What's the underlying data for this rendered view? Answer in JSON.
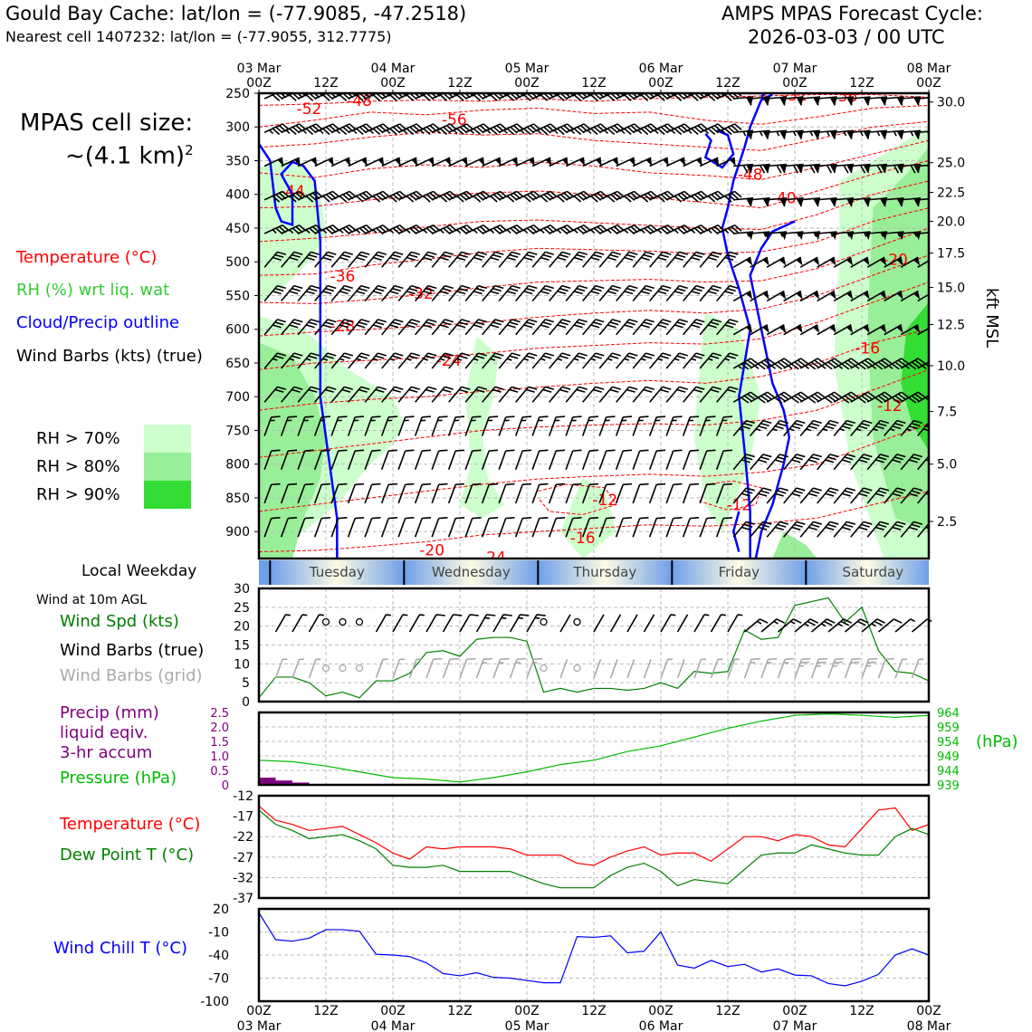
{
  "header": {
    "title": "Gould Bay Cache: lat/lon = (-77.9085, -47.2518)",
    "subtitle": "Nearest cell 1407232: lat/lon = (-77.9055, 312.7775)",
    "cycle_line1": "AMPS MPAS Forecast Cycle:",
    "cycle_line2": "2026-03-03 / 00 UTC"
  },
  "sidebar": {
    "cell_label": "MPAS cell size:",
    "cell_value": "~(4.1 km)",
    "cell_exp": "2",
    "legend_temp": "Temperature (°C)",
    "legend_rh": "RH (%) wrt liq. wat",
    "legend_cloud": "Cloud/Precip outline",
    "legend_wind": "Wind Barbs (kts) (true)",
    "rh70": "RH > 70%",
    "rh80": "RH > 80%",
    "rh90": "RH > 90%",
    "weekday_label": "Local Weekday",
    "wind10m_label": "Wind at 10m AGL",
    "wind_spd": "Wind Spd (kts)",
    "wind_true": "Wind Barbs (true)",
    "wind_grid": "Wind Barbs (grid)",
    "precip1": "Precip (mm)",
    "precip2": "liquid eqiv.",
    "precip3": "3-hr accum",
    "pressure": "Pressure (hPa)",
    "pressure_unit": "(hPa)",
    "temp": "Temperature (°C)",
    "dewpt": "Dew Point T (°C)",
    "windchill": "Wind Chill T (°C)",
    "kft": "kft MSL"
  },
  "colors": {
    "temp": "#ff0000",
    "dewpt": "#008000",
    "rh_label": "#33cc33",
    "cloud": "#0000ff",
    "windspd": "#008000",
    "grid_barb": "#aaaaaa",
    "precip": "#800080",
    "pressure": "#00bb00",
    "windchill": "#0000ff",
    "rh70": "#ccffcc",
    "rh80": "#99ee99",
    "rh90": "#33dd33"
  },
  "chart_data": [
    {
      "type": "time-height",
      "title": "Temperature, RH, cloud outline and wind barbs",
      "x_top_labels": [
        {
          "top": "03 Mar",
          "bottom": "00Z"
        },
        {
          "top": "",
          "bottom": "12Z"
        },
        {
          "top": "04 Mar",
          "bottom": "00Z"
        },
        {
          "top": "",
          "bottom": "12Z"
        },
        {
          "top": "05 Mar",
          "bottom": "00Z"
        },
        {
          "top": "",
          "bottom": "12Z"
        },
        {
          "top": "06 Mar",
          "bottom": "00Z"
        },
        {
          "top": "",
          "bottom": "12Z"
        },
        {
          "top": "07 Mar",
          "bottom": "00Z"
        },
        {
          "top": "",
          "bottom": "12Z"
        },
        {
          "top": "08 Mar",
          "bottom": "00Z"
        }
      ],
      "x_range_hours": [
        0,
        120
      ],
      "pressure_ticks": [
        "250",
        "300",
        "350",
        "400",
        "450",
        "500",
        "550",
        "600",
        "650",
        "700",
        "750",
        "800",
        "850",
        "900"
      ],
      "pressure_range": [
        250,
        940
      ],
      "height_ticks_kft": [
        "30.0",
        "25.0",
        "22.5",
        "20.0",
        "17.5",
        "15.0",
        "12.5",
        "10.0",
        "7.5",
        "5.0",
        "2.5"
      ],
      "height_tick_pressure": [
        263,
        353,
        397,
        440,
        487,
        538,
        593,
        654,
        722,
        800,
        885
      ],
      "temp_contour_labels": [
        {
          "text": "-52",
          "h": 9,
          "p": 273
        },
        {
          "text": "-48",
          "h": 18,
          "p": 261
        },
        {
          "text": "-56",
          "h": 35,
          "p": 289
        },
        {
          "text": "-52",
          "h": 96,
          "p": 253
        },
        {
          "text": "-56",
          "h": 105,
          "p": 254
        },
        {
          "text": "-44",
          "h": 6,
          "p": 395
        },
        {
          "text": "-48",
          "h": 88,
          "p": 370
        },
        {
          "text": "-40",
          "h": 94,
          "p": 405
        },
        {
          "text": "-36",
          "h": 15,
          "p": 521
        },
        {
          "text": "-32",
          "h": 29,
          "p": 547
        },
        {
          "text": "-20",
          "h": 114,
          "p": 496
        },
        {
          "text": "-28",
          "h": 15,
          "p": 595
        },
        {
          "text": "-24",
          "h": 34,
          "p": 646
        },
        {
          "text": "-16",
          "h": 109,
          "p": 628
        },
        {
          "text": "-12",
          "h": 113,
          "p": 713
        },
        {
          "text": "-12",
          "h": 62,
          "p": 853
        },
        {
          "text": "-12",
          "h": 86,
          "p": 860
        },
        {
          "text": "-16",
          "h": 58,
          "p": 909
        },
        {
          "text": "-20",
          "h": 31,
          "p": 927
        },
        {
          "text": "-24",
          "h": 42,
          "p": 938
        }
      ],
      "wind_barb_kts_by_level": {
        "250": 40,
        "300": 45,
        "350": 50,
        "400": 40,
        "450": 35,
        "500": 30,
        "550": 30,
        "600": 30,
        "650": 25,
        "700": 20,
        "750": 15,
        "800": 10,
        "850": 10,
        "900": 10
      }
    },
    {
      "type": "band",
      "title": "Local Weekday",
      "labels": [
        "Tuesday",
        "Wednesday",
        "Thursday",
        "Friday",
        "Saturday"
      ]
    },
    {
      "type": "line",
      "title": "Wind at 10m AGL",
      "ylabel": "Wind Spd (kts)",
      "ylim": [
        0,
        30
      ],
      "yticks": [
        "0",
        "5",
        "10",
        "15",
        "20",
        "25",
        "30"
      ],
      "x_hours": [
        0,
        3,
        6,
        9,
        12,
        15,
        18,
        21,
        24,
        27,
        30,
        33,
        36,
        39,
        42,
        45,
        48,
        51,
        54,
        57,
        60,
        63,
        66,
        69,
        72,
        75,
        78,
        81,
        84,
        87,
        90,
        93,
        96,
        99,
        102,
        105,
        108,
        111,
        114,
        117,
        120
      ],
      "wind_speed_kts": [
        1,
        6.5,
        6.5,
        5,
        1.5,
        2.5,
        1,
        5.5,
        5.5,
        7.5,
        13,
        13.5,
        12,
        16.5,
        17,
        17,
        16,
        2.5,
        3.5,
        2.5,
        3.5,
        3.5,
        3,
        3.5,
        5,
        3.5,
        8,
        7.5,
        8,
        19,
        16.5,
        17,
        25.5,
        26.5,
        27.5,
        21,
        25,
        13.5,
        8,
        7.5,
        5.5
      ]
    },
    {
      "type": "bar+line",
      "title": "Precip and Pressure",
      "precip_label": "Precip (mm)",
      "precip_ylim": [
        0,
        2.5
      ],
      "precip_ticks": [
        "0",
        "0.5",
        "1.0",
        "1.5",
        "2.0",
        "2.5"
      ],
      "precip_x_hours": [
        0,
        3,
        6
      ],
      "precip_mm": [
        0.25,
        0.15,
        0.08
      ],
      "pressure_ylim": [
        939,
        964
      ],
      "pressure_ticks": [
        "939",
        "944",
        "949",
        "954",
        "959",
        "964"
      ],
      "pressure_x_hours": [
        0,
        6,
        12,
        18,
        24,
        30,
        36,
        42,
        48,
        54,
        60,
        66,
        72,
        78,
        84,
        90,
        96,
        102,
        108,
        114,
        120
      ],
      "pressure_hpa": [
        947.5,
        947,
        945.5,
        943.5,
        941.5,
        941,
        940,
        941.5,
        943.5,
        946,
        947.5,
        950.5,
        952.5,
        955.5,
        958.5,
        961,
        963,
        963.5,
        963,
        962.3,
        963
      ]
    },
    {
      "type": "line",
      "title": "Temperature and Dew Point",
      "ylim": [
        -37,
        -12
      ],
      "yticks": [
        "-12",
        "-17",
        "-22",
        "-27",
        "-32",
        "-37"
      ],
      "x_hours": [
        0,
        3,
        6,
        9,
        12,
        15,
        18,
        21,
        24,
        27,
        30,
        33,
        36,
        39,
        42,
        45,
        48,
        51,
        54,
        57,
        60,
        63,
        66,
        69,
        72,
        75,
        78,
        81,
        84,
        87,
        90,
        93,
        96,
        99,
        102,
        105,
        108,
        111,
        114,
        117,
        120
      ],
      "series": [
        {
          "name": "Temperature (°C)",
          "values": [
            -14.5,
            -18,
            -19,
            -20.5,
            -20,
            -19.5,
            -21.5,
            -23.5,
            -26,
            -27.5,
            -24.5,
            -25,
            -24.5,
            -24.5,
            -24.5,
            -25,
            -26.5,
            -26.5,
            -26.5,
            -28.5,
            -29,
            -27,
            -25.5,
            -24.5,
            -26.5,
            -26,
            -26,
            -28,
            -25,
            -22,
            -22,
            -23,
            -21.5,
            -22,
            -24,
            -24.5,
            -20,
            -15.5,
            -15,
            -20.5,
            -19
          ]
        },
        {
          "name": "Dew Point T (°C)",
          "values": [
            -15.5,
            -19,
            -20.5,
            -22.5,
            -22,
            -21.5,
            -23,
            -25,
            -29,
            -29.5,
            -29.5,
            -29,
            -30.5,
            -30.5,
            -30.5,
            -30.5,
            -32,
            -33.5,
            -34.5,
            -34.5,
            -34.5,
            -31.5,
            -29.5,
            -28.5,
            -30.5,
            -34,
            -32.5,
            -33,
            -33.5,
            -30,
            -26.5,
            -26,
            -26,
            -24,
            -25,
            -26,
            -26.5,
            -26.5,
            -22,
            -20,
            -21.5
          ]
        }
      ]
    },
    {
      "type": "line",
      "title": "Wind Chill",
      "ylabel": "Wind Chill T (°C)",
      "ylim": [
        -100,
        20
      ],
      "yticks": [
        "20",
        "-10",
        "-40",
        "-70",
        "-100"
      ],
      "x_hours": [
        0,
        3,
        6,
        9,
        12,
        15,
        18,
        21,
        24,
        27,
        30,
        33,
        36,
        39,
        42,
        45,
        48,
        51,
        54,
        57,
        60,
        63,
        66,
        69,
        72,
        75,
        78,
        81,
        84,
        87,
        90,
        93,
        96,
        99,
        102,
        105,
        108,
        111,
        114,
        117,
        120
      ],
      "values": [
        15,
        -20,
        -22,
        -18,
        -7,
        -7,
        -9,
        -39,
        -40,
        -42,
        -50,
        -64,
        -67,
        -63,
        -69,
        -70,
        -73,
        -76,
        -76,
        -16,
        -17,
        -15,
        -37,
        -35,
        -10,
        -53,
        -57,
        -47,
        -55,
        -52,
        -62,
        -58,
        -66,
        -67,
        -77,
        -80,
        -74,
        -65,
        -40,
        -32,
        -40
      ]
    }
  ],
  "x_bottom_labels": [
    {
      "top": "00Z",
      "bottom": "03 Mar"
    },
    {
      "top": "12Z",
      "bottom": ""
    },
    {
      "top": "00Z",
      "bottom": "04 Mar"
    },
    {
      "top": "12Z",
      "bottom": ""
    },
    {
      "top": "00Z",
      "bottom": "05 Mar"
    },
    {
      "top": "12Z",
      "bottom": ""
    },
    {
      "top": "00Z",
      "bottom": "06 Mar"
    },
    {
      "top": "12Z",
      "bottom": ""
    },
    {
      "top": "00Z",
      "bottom": "07 Mar"
    },
    {
      "top": "12Z",
      "bottom": ""
    },
    {
      "top": "00Z",
      "bottom": "08 Mar"
    }
  ]
}
